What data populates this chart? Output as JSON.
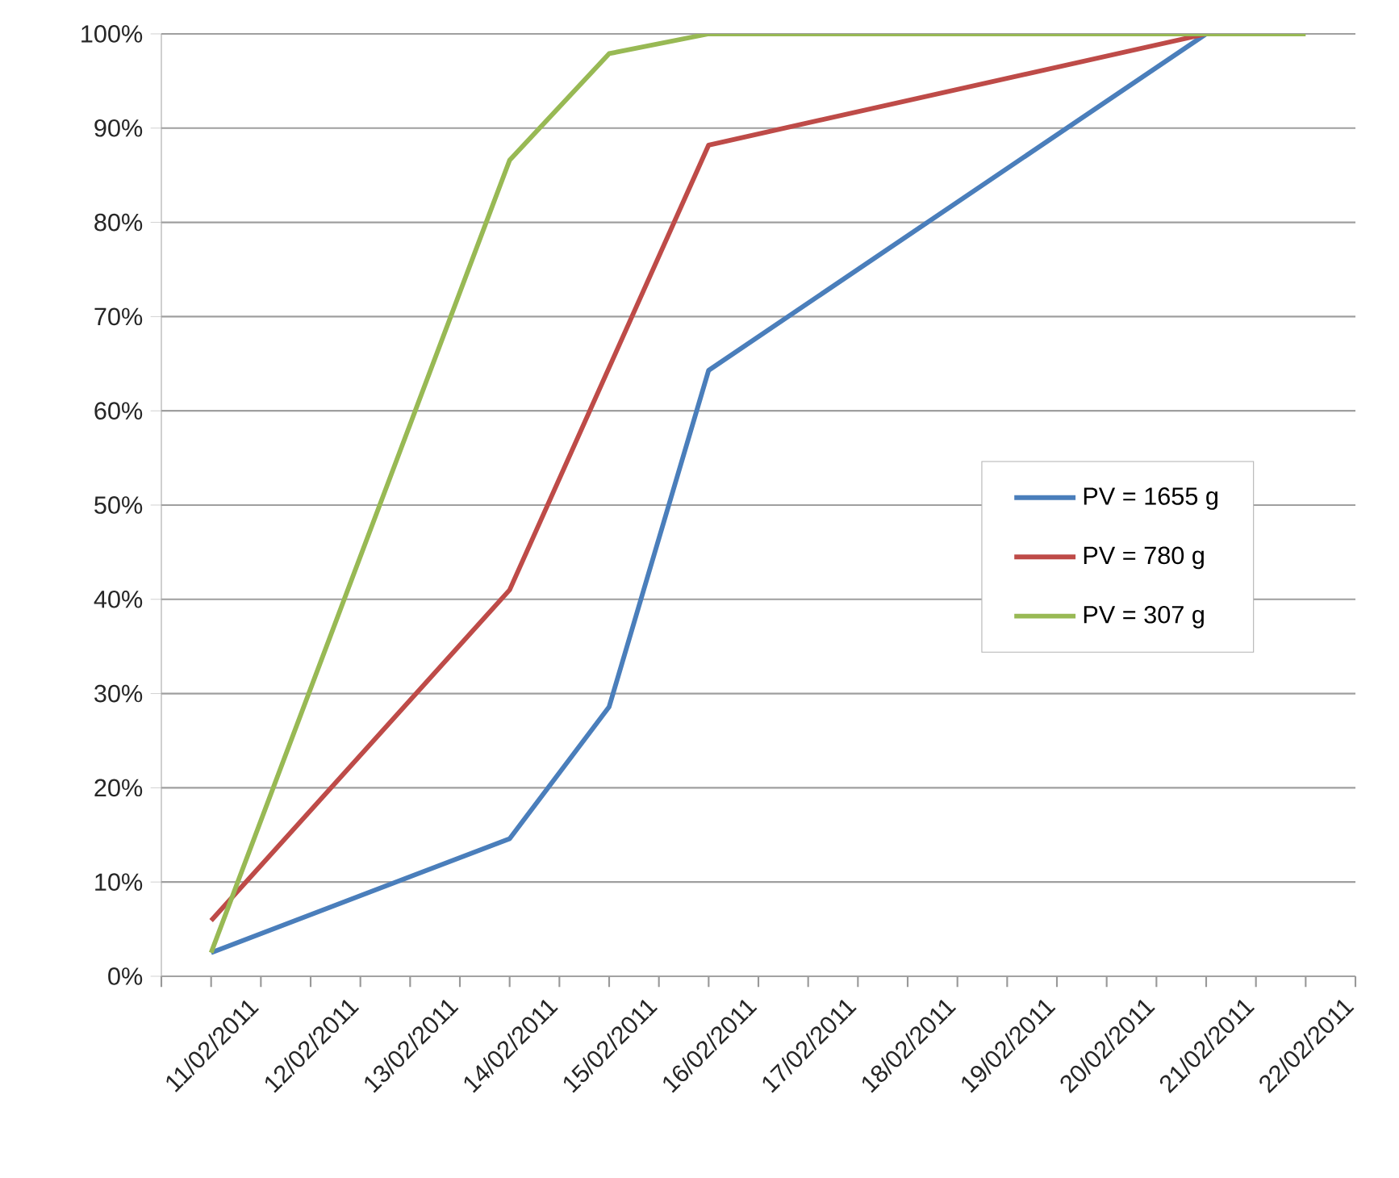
{
  "chart_data": {
    "type": "line",
    "xlim": [
      "2011-02-10T12:00",
      "2011-02-22T12:00"
    ],
    "xticks": [
      {
        "value": "2011-02-11",
        "label": "11/02/2011"
      },
      {
        "value": "2011-02-12",
        "label": "12/02/2011"
      },
      {
        "value": "2011-02-13",
        "label": "13/02/2011"
      },
      {
        "value": "2011-02-14",
        "label": "14/02/2011"
      },
      {
        "value": "2011-02-15",
        "label": "15/02/2011"
      },
      {
        "value": "2011-02-16",
        "label": "16/02/2011"
      },
      {
        "value": "2011-02-17",
        "label": "17/02/2011"
      },
      {
        "value": "2011-02-18",
        "label": "18/02/2011"
      },
      {
        "value": "2011-02-19",
        "label": "19/02/2011"
      },
      {
        "value": "2011-02-20",
        "label": "20/02/2011"
      },
      {
        "value": "2011-02-21",
        "label": "21/02/2011"
      },
      {
        "value": "2011-02-22",
        "label": "22/02/2011"
      },
      {
        "value": "2011-02-10T12:00",
        "label": null
      },
      {
        "value": "2011-02-11T12:00",
        "label": null
      },
      {
        "value": "2011-02-12T12:00",
        "label": null
      },
      {
        "value": "2011-02-13T12:00",
        "label": null
      },
      {
        "value": "2011-02-14T12:00",
        "label": null
      },
      {
        "value": "2011-02-15T12:00",
        "label": null
      },
      {
        "value": "2011-02-16T12:00",
        "label": null
      },
      {
        "value": "2011-02-17T12:00",
        "label": null
      },
      {
        "value": "2011-02-18T12:00",
        "label": null
      },
      {
        "value": "2011-02-19T12:00",
        "label": null
      },
      {
        "value": "2011-02-20T12:00",
        "label": null
      },
      {
        "value": "2011-02-21T12:00",
        "label": null
      },
      {
        "value": "2011-02-22T12:00",
        "label": null
      }
    ],
    "ylim": [
      0,
      100
    ],
    "yticks": [
      {
        "value": 0,
        "label": "0%"
      },
      {
        "value": 10,
        "label": "10%"
      },
      {
        "value": 20,
        "label": "20%"
      },
      {
        "value": 30,
        "label": "30%"
      },
      {
        "value": 40,
        "label": "40%"
      },
      {
        "value": 50,
        "label": "50%"
      },
      {
        "value": 60,
        "label": "60%"
      },
      {
        "value": 70,
        "label": "70%"
      },
      {
        "value": 80,
        "label": "80%"
      },
      {
        "value": 90,
        "label": "90%"
      },
      {
        "value": 100,
        "label": "100%"
      }
    ],
    "grid": "y",
    "legend": "right",
    "marker": "none",
    "line_style": "solid",
    "series": [
      {
        "name": "PV = 1655 g",
        "color": "#4a7ebb",
        "x": [
          "2011-02-11",
          "2011-02-14",
          "2011-02-15",
          "2011-02-16",
          "2011-02-21"
        ],
        "values": [
          2.5,
          14.6,
          28.6,
          64.3,
          100
        ]
      },
      {
        "name": "PV = 780 g",
        "color": "#be4b48",
        "x": [
          "2011-02-11",
          "2011-02-14",
          "2011-02-16",
          "2011-02-21"
        ],
        "values": [
          5.9,
          41,
          88.2,
          100
        ]
      },
      {
        "name": "PV = 307 g",
        "color": "#98b954",
        "x": [
          "2011-02-11",
          "2011-02-14",
          "2011-02-15",
          "2011-02-16",
          "2011-02-22"
        ],
        "values": [
          2.5,
          86.6,
          97.9,
          100,
          100
        ]
      }
    ]
  }
}
